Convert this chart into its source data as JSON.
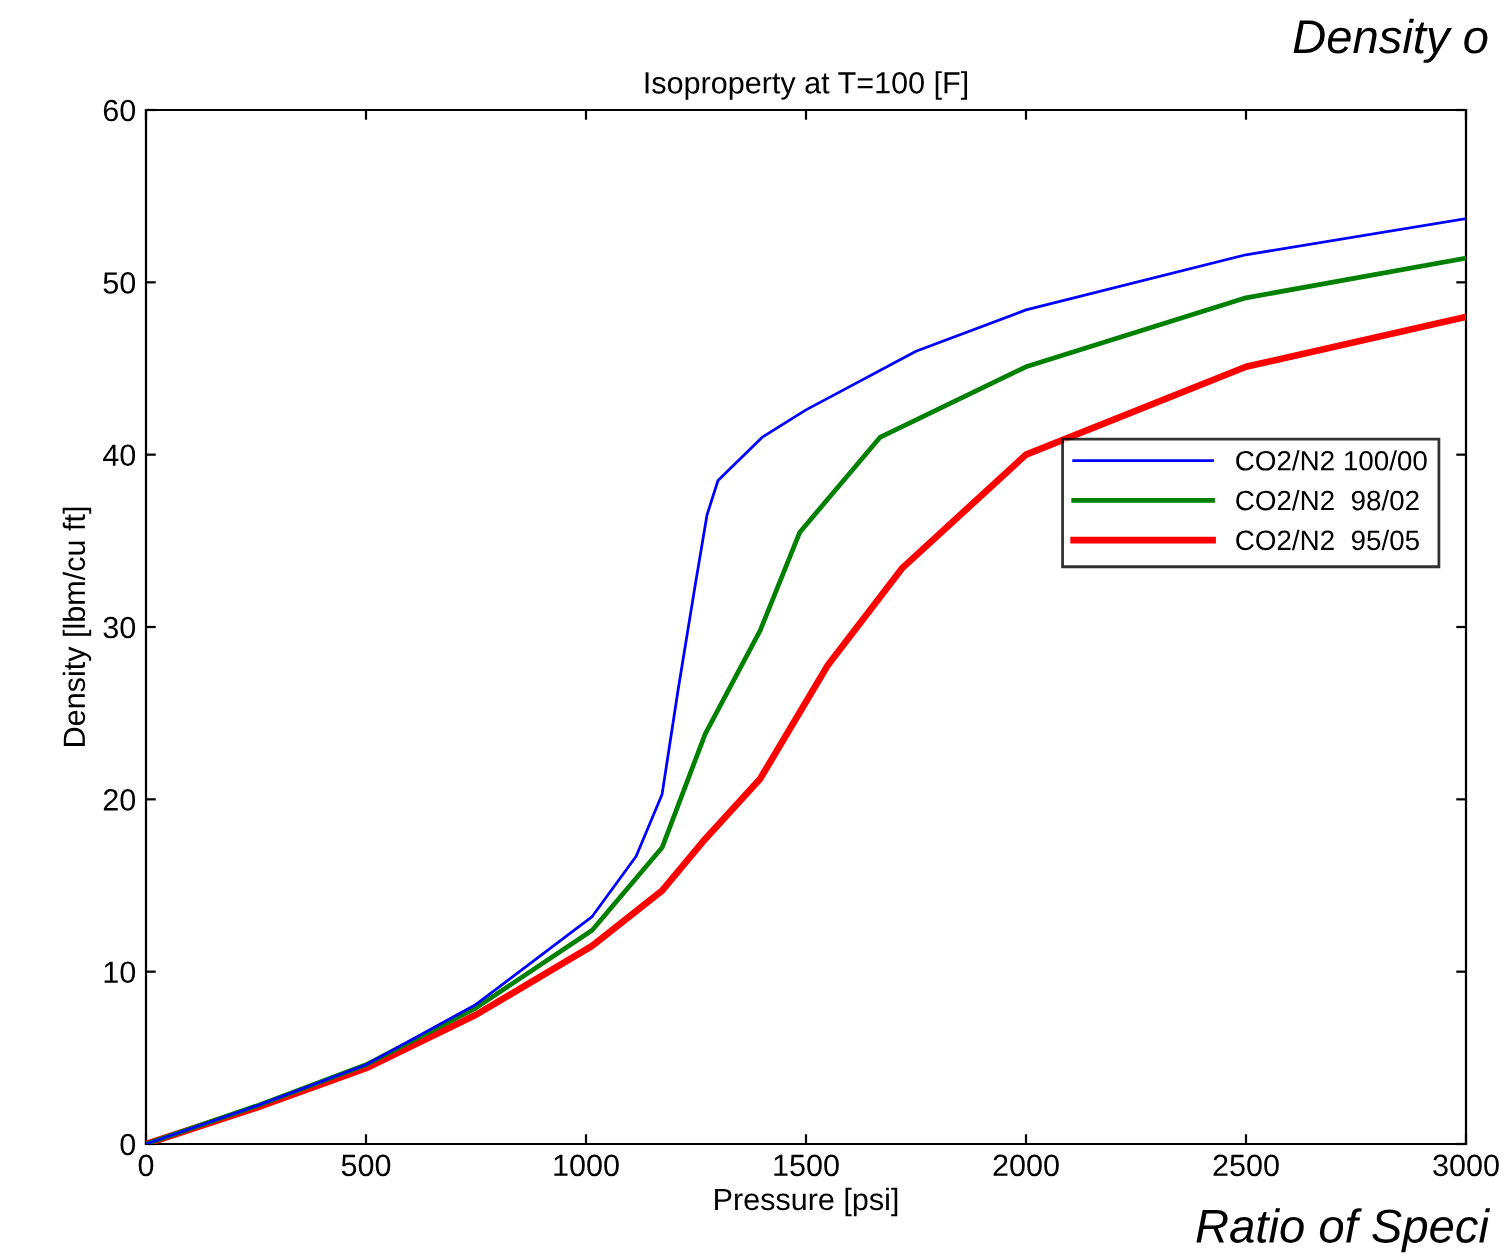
{
  "chart_data": {
    "type": "line",
    "title": "Isoproperty at T=100 [F]",
    "xlabel": "Pressure [psi]",
    "ylabel": "Density [lbm/cu ft]",
    "xlim": [
      0,
      3000
    ],
    "xticks": [
      0,
      500,
      1000,
      1500,
      2000,
      2500,
      3000
    ],
    "ylim": [
      0,
      60
    ],
    "yticks": [
      0,
      10,
      20,
      30,
      40,
      50,
      60
    ],
    "grid": false,
    "legend": "right",
    "line_style": "solid",
    "marker": "none",
    "annotations": [
      "Density o",
      "Ratio of Speci"
    ],
    "series": [
      {
        "name": "CO2/N2 100/00",
        "color": "#0000ff",
        "x": [
          0,
          250,
          500,
          750,
          1014,
          1114,
          1173,
          1209,
          1248,
          1275,
          1300,
          1400,
          1500,
          1750,
          2000,
          2500,
          3000
        ],
        "values": [
          0,
          2.2,
          4.6,
          8.1,
          13.2,
          16.7,
          20.3,
          26.3,
          32.4,
          36.5,
          38.5,
          41,
          42.6,
          46,
          48.4,
          51.6,
          53.7
        ]
      },
      {
        "name": "CO2/N2  98/02",
        "color": "#008000",
        "x": [
          0,
          250,
          500,
          750,
          1014,
          1173,
          1271,
          1396,
          1486,
          1668,
          2000,
          2500,
          3000
        ],
        "values": [
          0,
          2.2,
          4.6,
          7.9,
          12.4,
          17.2,
          23.8,
          29.8,
          35.5,
          41,
          45.1,
          49.1,
          51.4
        ]
      },
      {
        "name": "CO2/N2  95/05",
        "color": "#ff0000",
        "x": [
          0,
          250,
          500,
          750,
          1014,
          1173,
          1271,
          1396,
          1550,
          1718,
          2000,
          2500,
          3000
        ],
        "values": [
          0,
          2.1,
          4.4,
          7.5,
          11.5,
          14.7,
          17.7,
          21.2,
          27.8,
          33.4,
          40,
          45.1,
          48.0
        ]
      }
    ]
  }
}
